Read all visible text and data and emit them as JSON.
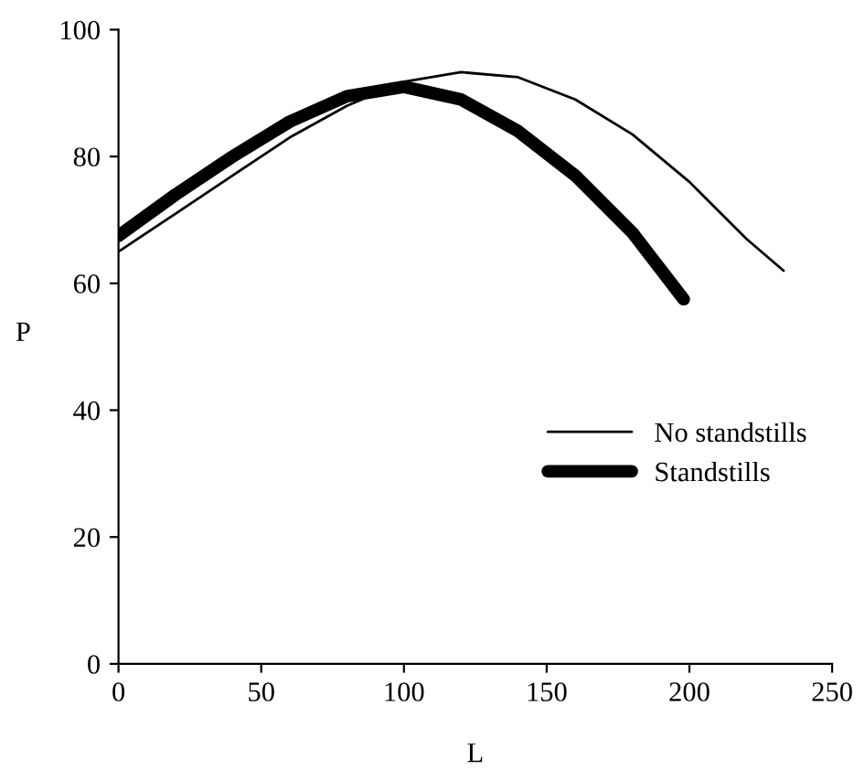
{
  "chart_data": {
    "type": "line",
    "xlabel": "L",
    "ylabel": "P",
    "xlim": [
      0,
      250
    ],
    "ylim": [
      0,
      100
    ],
    "xticks": [
      0,
      50,
      100,
      150,
      200,
      250
    ],
    "yticks": [
      0,
      20,
      40,
      60,
      80,
      100
    ],
    "grid": false,
    "legend": "right",
    "marker": "none",
    "line_style": "solid",
    "series": [
      {
        "name": "No standstills",
        "color": "#000000",
        "x": [
          0,
          20,
          40,
          60,
          80,
          100,
          120,
          140,
          160,
          180,
          200,
          220,
          233
        ],
        "values": [
          65,
          71,
          77,
          83,
          88,
          91.8,
          93.3,
          92.5,
          89,
          83.5,
          76,
          67,
          62
        ]
      },
      {
        "name": "Standstills",
        "color": "#000000",
        "x": [
          0,
          20,
          40,
          60,
          80,
          100,
          120,
          140,
          160,
          180,
          198
        ],
        "values": [
          67.5,
          74,
          80,
          85.5,
          89.5,
          91,
          89,
          84,
          77,
          68,
          57.5
        ]
      }
    ]
  }
}
